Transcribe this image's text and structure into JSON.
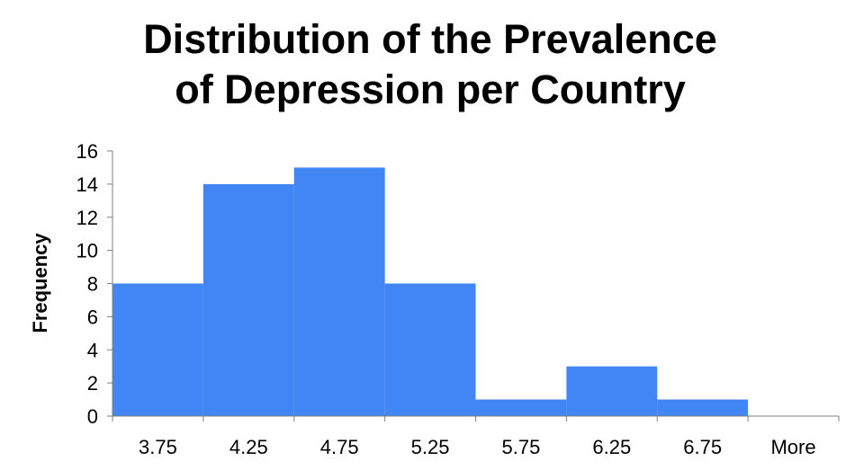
{
  "chart_data": {
    "type": "bar",
    "title_lines": [
      "Distribution of the Prevalence",
      "of Depression per Country"
    ],
    "xlabel": "",
    "ylabel": "Frequency",
    "categories": [
      "3.75",
      "4.25",
      "4.75",
      "5.25",
      "5.75",
      "6.25",
      "6.75",
      "More"
    ],
    "values": [
      8,
      14,
      15,
      8,
      1,
      3,
      1,
      0
    ],
    "ylim": [
      0,
      16
    ],
    "yticks": [
      "0",
      "2",
      "4",
      "6",
      "8",
      "10",
      "12",
      "14",
      "16"
    ],
    "grid": false,
    "legend": "none",
    "bar_color": "#4285F4",
    "axis_color": "#7f7f7f"
  }
}
